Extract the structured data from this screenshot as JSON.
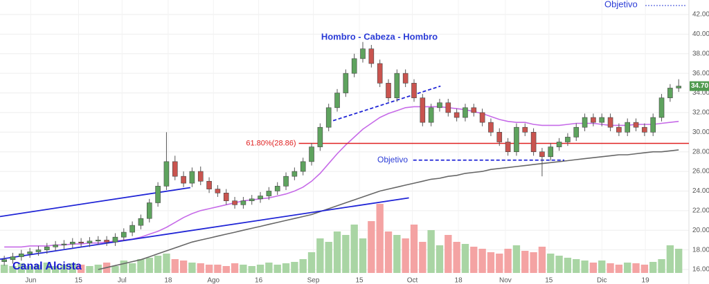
{
  "chart_data": {
    "type": "candlestick",
    "x": [
      0,
      1,
      2,
      3,
      4,
      5,
      6,
      7,
      8,
      9,
      10,
      11,
      12,
      13,
      14,
      15,
      16,
      17,
      18,
      19,
      20,
      21,
      22,
      23,
      24,
      25,
      26,
      27,
      28,
      29,
      30,
      31,
      32,
      33,
      34,
      35,
      36,
      37,
      38,
      39,
      40,
      41,
      42,
      43,
      44,
      45,
      46,
      47,
      48,
      49,
      50,
      51,
      52,
      53,
      54,
      55,
      56,
      57,
      58,
      59,
      60,
      61,
      62,
      63,
      64,
      65,
      66,
      67,
      68,
      69,
      70,
      71,
      72,
      73,
      74,
      75,
      76,
      77,
      78,
      79
    ],
    "open": [
      16.8,
      17.0,
      17.3,
      17.6,
      17.8,
      18.0,
      18.3,
      18.5,
      18.6,
      18.8,
      18.7,
      18.9,
      19.0,
      18.8,
      19.3,
      19.8,
      20.5,
      21.2,
      22.8,
      24.5,
      27.0,
      25.5,
      24.8,
      26.0,
      25.0,
      24.2,
      23.8,
      23.0,
      22.6,
      23.0,
      23.2,
      23.5,
      24.0,
      24.5,
      25.5,
      26.0,
      27.0,
      28.5,
      30.5,
      32.5,
      34.0,
      36.0,
      37.5,
      38.5,
      37.0,
      35.0,
      33.5,
      36.0,
      35.0,
      33.5,
      31.0,
      32.5,
      33.0,
      32.0,
      31.5,
      32.5,
      32.0,
      31.0,
      30.0,
      29.0,
      28.0,
      30.5,
      30.0,
      28.0,
      27.5,
      28.5,
      29.0,
      29.5,
      30.5,
      31.5,
      31.0,
      31.5,
      30.5,
      30.0,
      31.0,
      30.5,
      30.0,
      31.5,
      33.5,
      34.5
    ],
    "high": [
      17.4,
      17.7,
      18.0,
      18.2,
      18.4,
      18.7,
      18.9,
      19.0,
      19.2,
      19.2,
      19.3,
      19.4,
      19.4,
      19.7,
      20.2,
      20.9,
      21.6,
      23.2,
      24.9,
      30.0,
      27.6,
      26.0,
      26.4,
      26.5,
      25.4,
      24.6,
      24.2,
      23.4,
      23.4,
      23.6,
      23.9,
      24.4,
      24.9,
      25.9,
      26.4,
      27.4,
      28.9,
      30.9,
      32.9,
      34.4,
      36.4,
      38.0,
      39.2,
      38.9,
      37.4,
      35.4,
      36.4,
      36.4,
      35.4,
      33.9,
      32.9,
      33.4,
      33.4,
      32.4,
      32.9,
      32.9,
      32.4,
      31.4,
      30.4,
      29.4,
      30.9,
      30.9,
      30.4,
      28.4,
      28.9,
      29.4,
      29.9,
      30.9,
      31.9,
      31.9,
      31.9,
      31.9,
      30.9,
      31.4,
      31.4,
      30.9,
      31.9,
      33.9,
      34.9,
      35.4
    ],
    "low": [
      16.4,
      16.6,
      16.9,
      17.2,
      17.4,
      17.6,
      17.9,
      18.1,
      18.2,
      18.3,
      18.3,
      18.5,
      18.4,
      18.4,
      18.9,
      19.4,
      20.1,
      20.8,
      22.4,
      24.1,
      25.1,
      24.4,
      24.4,
      24.6,
      23.8,
      23.4,
      22.6,
      22.2,
      22.2,
      22.6,
      22.8,
      23.1,
      23.6,
      24.1,
      25.1,
      25.6,
      26.6,
      28.1,
      30.1,
      32.1,
      33.6,
      35.6,
      37.1,
      36.6,
      34.6,
      33.1,
      33.1,
      34.6,
      33.1,
      30.6,
      30.6,
      32.1,
      31.6,
      31.1,
      31.1,
      31.6,
      30.6,
      29.6,
      28.6,
      27.6,
      27.6,
      29.6,
      27.6,
      25.5,
      27.1,
      28.1,
      28.6,
      29.1,
      30.1,
      30.6,
      30.6,
      30.1,
      29.6,
      29.6,
      30.1,
      29.6,
      29.6,
      31.1,
      33.1,
      34.1
    ],
    "close": [
      17.0,
      17.3,
      17.6,
      17.8,
      18.0,
      18.3,
      18.5,
      18.6,
      18.8,
      18.7,
      18.9,
      19.0,
      18.8,
      19.3,
      19.8,
      20.5,
      21.2,
      22.8,
      24.5,
      27.0,
      25.5,
      24.8,
      26.0,
      25.0,
      24.2,
      23.8,
      23.0,
      22.6,
      23.0,
      23.2,
      23.5,
      24.0,
      24.5,
      25.5,
      26.0,
      27.0,
      28.5,
      30.5,
      32.5,
      34.0,
      36.0,
      37.5,
      38.5,
      37.0,
      35.0,
      33.5,
      36.0,
      35.0,
      33.5,
      31.0,
      32.5,
      33.0,
      32.0,
      31.5,
      32.5,
      32.0,
      31.0,
      30.0,
      29.0,
      28.0,
      30.5,
      30.0,
      28.0,
      27.5,
      28.5,
      29.0,
      29.5,
      30.5,
      31.5,
      31.0,
      31.5,
      30.5,
      30.0,
      31.0,
      30.5,
      30.0,
      31.5,
      33.5,
      34.5,
      34.7
    ],
    "volume": [
      12,
      10,
      14,
      10,
      12,
      15,
      10,
      12,
      14,
      12,
      10,
      12,
      15,
      10,
      18,
      14,
      20,
      22,
      25,
      28,
      20,
      18,
      15,
      14,
      12,
      12,
      10,
      14,
      12,
      10,
      12,
      15,
      12,
      14,
      16,
      20,
      30,
      50,
      45,
      60,
      55,
      70,
      50,
      75,
      100,
      60,
      55,
      50,
      70,
      45,
      62,
      40,
      55,
      45,
      42,
      38,
      35,
      30,
      28,
      35,
      40,
      32,
      30,
      38,
      28,
      25,
      22,
      20,
      18,
      15,
      18,
      14,
      12,
      15,
      14,
      12,
      16,
      20,
      40,
      35
    ],
    "vlim": [
      0,
      100
    ],
    "up_color": "#5ea35e",
    "down_color": "#c9544f",
    "up_volume_color": "#a9d5a4",
    "down_volume_color": "#f4a3a3",
    "xlim": [
      -0.5,
      80.2
    ],
    "ylim": [
      16,
      42
    ],
    "yticks": [
      {
        "value": 16,
        "label": "16.00"
      },
      {
        "value": 18,
        "label": "18.00"
      },
      {
        "value": 20,
        "label": "20.00"
      },
      {
        "value": 22,
        "label": "22.00"
      },
      {
        "value": 24,
        "label": "24.00"
      },
      {
        "value": 26,
        "label": "26.00"
      },
      {
        "value": 28,
        "label": "28.00"
      },
      {
        "value": 30,
        "label": "30.00"
      },
      {
        "value": 32,
        "label": "32.00"
      },
      {
        "value": 34,
        "label": "34.00"
      },
      {
        "value": 36,
        "label": "36.00"
      },
      {
        "value": 38,
        "label": "38.00"
      },
      {
        "value": 40,
        "label": "40.00"
      },
      {
        "value": 42,
        "label": "42.00"
      }
    ],
    "xticks": [
      {
        "value": 3.1,
        "label": "Jun"
      },
      {
        "value": 8.7,
        "label": "15"
      },
      {
        "value": 13.8,
        "label": "Jul"
      },
      {
        "value": 19.2,
        "label": "18"
      },
      {
        "value": 24.5,
        "label": "Ago"
      },
      {
        "value": 29.8,
        "label": "16"
      },
      {
        "value": 36.2,
        "label": "Sep"
      },
      {
        "value": 41.6,
        "label": "15"
      },
      {
        "value": 47.8,
        "label": "Oct"
      },
      {
        "value": 53.2,
        "label": "18"
      },
      {
        "value": 58.7,
        "label": "Nov"
      },
      {
        "value": 63.8,
        "label": "15"
      },
      {
        "value": 70.0,
        "label": "Dic"
      },
      {
        "value": 75.1,
        "label": "19"
      }
    ],
    "grid": true,
    "series": [
      {
        "color": "#c66ae8",
        "values": [
          18.3,
          18.3,
          18.3,
          18.4,
          18.4,
          18.4,
          18.5,
          18.5,
          18.6,
          18.6,
          18.7,
          18.7,
          18.8,
          18.9,
          19.0,
          19.1,
          19.3,
          19.6,
          19.9,
          20.3,
          20.8,
          21.3,
          21.7,
          22.0,
          22.2,
          22.4,
          22.6,
          22.8,
          23.0,
          23.1,
          23.2,
          23.3,
          23.5,
          23.7,
          24.0,
          24.4,
          25.0,
          25.8,
          26.8,
          27.8,
          28.7,
          29.5,
          30.3,
          30.9,
          31.5,
          31.9,
          32.2,
          32.5,
          32.6,
          32.6,
          32.6,
          32.6,
          32.5,
          32.4,
          32.3,
          32.1,
          31.9,
          31.6,
          31.3,
          31.1,
          31.0,
          31.0,
          30.8,
          30.7,
          30.7,
          30.7,
          30.8,
          30.9,
          30.9,
          30.9,
          30.8,
          30.7,
          30.7,
          30.7,
          30.8,
          30.8,
          30.8,
          30.9,
          31.0,
          31.1
        ]
      },
      {
        "color": "#666666",
        "values": [
          null,
          null,
          null,
          null,
          null,
          null,
          null,
          null,
          null,
          null,
          null,
          16.0,
          16.2,
          16.4,
          16.6,
          16.8,
          17.0,
          17.3,
          17.6,
          17.9,
          18.2,
          18.5,
          18.8,
          19.0,
          19.2,
          19.4,
          19.6,
          19.8,
          20.0,
          20.2,
          20.4,
          20.6,
          20.8,
          21.0,
          21.2,
          21.4,
          21.6,
          21.9,
          22.2,
          22.5,
          22.8,
          23.1,
          23.4,
          23.7,
          24.0,
          24.2,
          24.4,
          24.6,
          24.8,
          25.0,
          25.2,
          25.3,
          25.5,
          25.6,
          25.8,
          25.9,
          26.0,
          26.2,
          26.3,
          26.4,
          26.5,
          26.6,
          26.7,
          26.8,
          26.9,
          27.0,
          27.1,
          27.2,
          27.3,
          27.4,
          27.5,
          27.6,
          27.7,
          27.7,
          27.8,
          27.9,
          28.0,
          28.0,
          28.1,
          28.2
        ]
      }
    ],
    "trend_lines": [
      {
        "color": "#1f24d6",
        "dashed": false,
        "x": [
          -0.5,
          21.8
        ],
        "y": [
          21.4,
          24.35
        ]
      },
      {
        "color": "#1f24d6",
        "dashed": false,
        "x": [
          -0.5,
          47.4
        ],
        "y": [
          17.05,
          23.3
        ]
      },
      {
        "color": "#1f24d6",
        "dashed": true,
        "x": [
          37.9,
          51.1
        ],
        "y": [
          31.0,
          34.7
        ]
      },
      {
        "color": "#1f24d6",
        "dashed": true,
        "x": [
          47.9,
          65.6
        ],
        "y": [
          27.15,
          27.15
        ]
      }
    ],
    "fib_level": {
      "label": "61.80%(28.86)",
      "value": 28.86,
      "color": "#e02020",
      "x0": 34.5
    },
    "last_price": {
      "value": 34.7,
      "label": "34.70",
      "color": "#4f9a4f"
    },
    "pattern_title": "Hombro - Cabeza - Hombro",
    "target_label": "Objetivo",
    "top_target_label": "Objetivo",
    "channel_label": "Canal Alcista"
  }
}
